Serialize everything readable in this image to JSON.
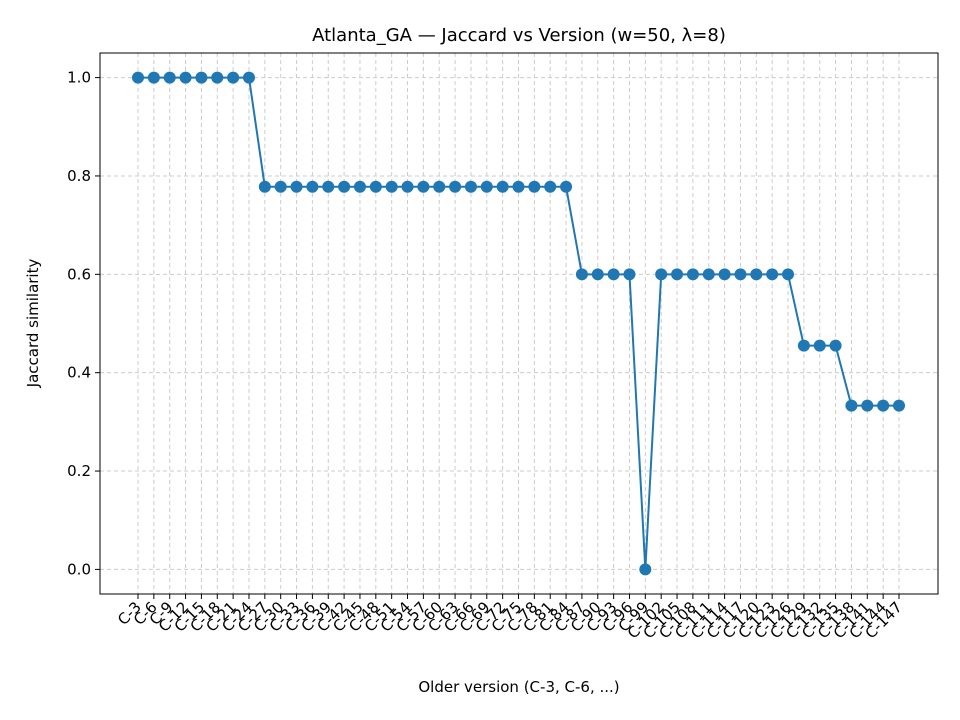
{
  "chart_data": {
    "type": "line",
    "title": "Atlanta_GA — Jaccard vs Version (w=50, λ=8)",
    "x_label": "Older version (C-3, C-6, ...)",
    "y_label": "Jaccard similarity",
    "categories": [
      "C-3",
      "C-6",
      "C-9",
      "C-12",
      "C-15",
      "C-18",
      "C-21",
      "C-24",
      "C-27",
      "C-30",
      "C-33",
      "C-36",
      "C-39",
      "C-42",
      "C-45",
      "C-48",
      "C-51",
      "C-54",
      "C-57",
      "C-60",
      "C-63",
      "C-66",
      "C-69",
      "C-72",
      "C-75",
      "C-78",
      "C-81",
      "C-84",
      "C-87",
      "C-90",
      "C-93",
      "C-96",
      "C-99",
      "C-102",
      "C-105",
      "C-108",
      "C-111",
      "C-114",
      "C-117",
      "C-120",
      "C-123",
      "C-126",
      "C-129",
      "C-132",
      "C-135",
      "C-138",
      "C-141",
      "C-144",
      "C-147"
    ],
    "series": [
      {
        "name": "Jaccard similarity",
        "color": "#1f77b4",
        "values": [
          1,
          1,
          1,
          1,
          1,
          1,
          1,
          1,
          0.778,
          0.778,
          0.778,
          0.778,
          0.778,
          0.778,
          0.778,
          0.778,
          0.778,
          0.778,
          0.778,
          0.778,
          0.778,
          0.778,
          0.778,
          0.778,
          0.778,
          0.778,
          0.778,
          0.778,
          0.6,
          0.6,
          0.6,
          0.6,
          0,
          0.6,
          0.6,
          0.6,
          0.6,
          0.6,
          0.6,
          0.6,
          0.6,
          0.6,
          0.455,
          0.455,
          0.455,
          0.333,
          0.333,
          0.333,
          0.333
        ]
      }
    ],
    "ylim": [
      -0.05,
      1.05
    ],
    "yticks": [
      {
        "value": 0,
        "label": "0.0"
      },
      0.2,
      0.4,
      0.6,
      0.8,
      {
        "value": 1,
        "label": "1.0"
      }
    ],
    "grid": true
  }
}
